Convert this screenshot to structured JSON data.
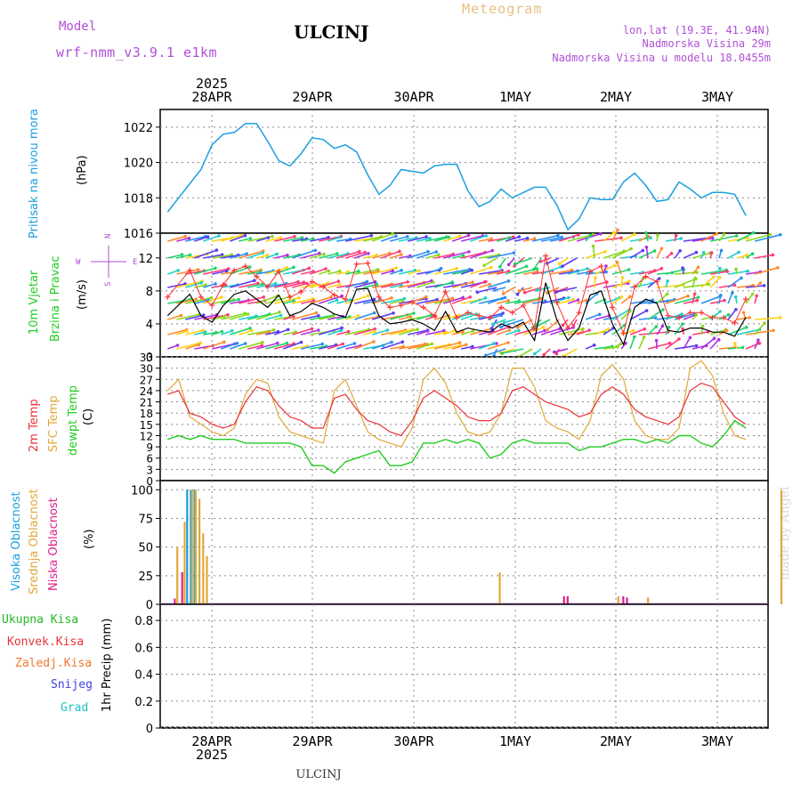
{
  "header": {
    "model_label": "Model",
    "model_name": "wrf-nmm_v3.9.1  e1km",
    "station": "ULCINJ",
    "product": "Meteogram",
    "lonlat": "lon,lat (19.3E, 41.94N)",
    "altitude": "Nadmorska Visina 29m",
    "model_altitude": "Nadmorska Visina u modelu 18.0455m",
    "footer_station": "ULCINJ",
    "credit": "made by Angel",
    "year": "2025"
  },
  "colors": {
    "pressure": "#1a9fe0",
    "temp2m": "#e8333a",
    "sfc": "#e0a93a",
    "dewpt": "#22cc22",
    "wind_speed": "#000000",
    "gust_marker": "#ff3030",
    "high_cloud": "#1a9fe0",
    "mid_cloud": "#e0a93a",
    "low_cloud": "#e0208a",
    "total_precip": "#22bb22",
    "conv_precip": "#e8333a",
    "frozen_precip": "#f07830",
    "snow": "#4040e0",
    "hail": "#20c0c0",
    "title_gold": "#e8c080",
    "header_purple": "#a040d0"
  },
  "time_axis": {
    "days": [
      "28APR",
      "29APR",
      "30APR",
      "1MAY",
      "2MAY",
      "3MAY"
    ],
    "hours_start": 0,
    "hours_end": 144
  },
  "panels": {
    "pressure": {
      "label": "Pritisak na nivou mora",
      "unit": "(hPa)",
      "ticks": [
        "1016",
        "1018",
        "1020",
        "1022"
      ]
    },
    "wind": {
      "label1": "10m Vjetar",
      "label2": "Brzina i Pravac",
      "unit": "(m/s)",
      "ticks": [
        "0",
        "4",
        "8",
        "12"
      ],
      "compass": {
        "n": "N",
        "s": "S",
        "e": "E",
        "w": "W"
      }
    },
    "temp": {
      "label1": "2m Temp",
      "label2": "SFC Temp",
      "label3": "dewpt Temp",
      "unit": "(C)",
      "ticks": [
        "0",
        "3",
        "6",
        "9",
        "12",
        "15",
        "18",
        "21",
        "24",
        "27",
        "30",
        "33"
      ]
    },
    "cloud": {
      "label1": "Visoka Oblacnost",
      "label2": "Srednja Oblacnost",
      "label3": "Niska Oblacnost",
      "unit": "(%)",
      "ticks": [
        "0",
        "25",
        "50",
        "75",
        "100"
      ]
    },
    "precip": {
      "legend": [
        "Ukupna Kisa",
        "Konvek.Kisa",
        "Zaledj.Kisa",
        "Snijeg",
        "Grad"
      ],
      "unit": "1hr Precip (mm)",
      "ticks": [
        "0",
        "0.2",
        "0.4",
        "0.6",
        "0.8"
      ]
    }
  },
  "chart_data": [
    {
      "type": "line",
      "title": "Pritisak na nivou mora",
      "ylabel": "(hPa)",
      "ylim": [
        1016,
        1023
      ],
      "x_unit": "hours from 28APR 00",
      "series": [
        {
          "name": "Pritisak na nivou mora",
          "x": [
            -12,
            -6,
            -3,
            0,
            3,
            6,
            9,
            12,
            15,
            18,
            21,
            24,
            27,
            30,
            33,
            36,
            39,
            42,
            45,
            48,
            51,
            54,
            57,
            60,
            63,
            66,
            69,
            72,
            75,
            78,
            81,
            84,
            87,
            90,
            93,
            96,
            99,
            102,
            105,
            108,
            111,
            114,
            117,
            120,
            123,
            126,
            129,
            132,
            135,
            138,
            141,
            144
          ],
          "values": [
            1017.2,
            1018.8,
            1019.6,
            1021.0,
            1021.6,
            1021.7,
            1022.2,
            1022.2,
            1021.2,
            1020.1,
            1019.8,
            1020.5,
            1021.4,
            1021.3,
            1020.8,
            1021.0,
            1020.6,
            1019.3,
            1018.2,
            1018.7,
            1019.6,
            1019.5,
            1019.4,
            1019.8,
            1019.9,
            1019.9,
            1018.4,
            1017.5,
            1017.8,
            1018.5,
            1018.0,
            1018.3,
            1018.6,
            1018.6,
            1017.6,
            1016.2,
            1016.8,
            1018.0,
            1017.9,
            1017.9,
            1018.9,
            1019.4,
            1018.7,
            1017.8,
            1017.9,
            1018.9,
            1018.5,
            1018.0,
            1018.3,
            1018.3,
            1018.2,
            1017.0
          ]
        }
      ]
    },
    {
      "type": "line",
      "title": "10m Vjetar Brzina i Pravac",
      "ylabel": "(m/s)",
      "ylim": [
        0,
        15
      ],
      "x_unit": "hours from 28APR 00",
      "series": [
        {
          "name": "Brzina",
          "x": [
            -12,
            -6,
            -3,
            0,
            3,
            6,
            9,
            12,
            15,
            18,
            21,
            24,
            27,
            30,
            33,
            36,
            39,
            42,
            45,
            48,
            51,
            54,
            57,
            60,
            63,
            66,
            69,
            72,
            75,
            78,
            81,
            84,
            87,
            90,
            93,
            96,
            99,
            102,
            105,
            108,
            111,
            114,
            117,
            120,
            123,
            126,
            129,
            132,
            135,
            138,
            141,
            144
          ],
          "values": [
            5.0,
            7.6,
            5.0,
            4.2,
            6.2,
            7.6,
            8.0,
            7.0,
            6.0,
            7.5,
            5.0,
            5.5,
            6.5,
            6.0,
            5.2,
            4.8,
            8.2,
            8.3,
            5.0,
            4.0,
            4.2,
            4.5,
            4.0,
            3.2,
            5.5,
            3.0,
            3.5,
            3.2,
            3.0,
            4.0,
            3.5,
            4.2,
            2.0,
            9.0,
            4.5,
            2.0,
            3.5,
            7.5,
            8.0,
            4.0,
            1.5,
            6.0,
            7.0,
            6.5,
            3.2,
            3.0,
            3.5,
            3.5,
            3.0,
            3.0,
            2.5,
            4.8
          ]
        }
      ]
    },
    {
      "type": "line",
      "title": "2m Temp / SFC Temp / dewpt Temp",
      "ylabel": "(C)",
      "ylim": [
        0,
        33
      ],
      "x_unit": "hours from 28APR 00",
      "series": [
        {
          "name": "2m Temp",
          "x": [
            -12,
            -9,
            -6,
            -3,
            0,
            3,
            6,
            9,
            12,
            15,
            18,
            21,
            24,
            27,
            30,
            33,
            36,
            39,
            42,
            45,
            48,
            51,
            54,
            57,
            60,
            63,
            66,
            69,
            72,
            75,
            78,
            81,
            84,
            87,
            90,
            93,
            96,
            99,
            102,
            105,
            108,
            111,
            114,
            117,
            120,
            123,
            126,
            129,
            132,
            135,
            138,
            141,
            144
          ],
          "values": [
            23,
            24,
            18,
            17,
            15,
            14,
            15,
            21,
            25,
            24,
            20,
            17,
            16,
            14,
            14,
            22,
            23,
            19,
            16,
            15,
            13,
            12,
            16,
            22,
            24,
            22,
            20,
            17,
            16,
            16,
            18,
            24,
            25,
            23,
            21,
            20,
            19,
            17,
            18,
            23,
            25,
            23,
            19,
            17,
            16,
            15,
            17,
            24,
            26,
            25,
            21,
            17,
            15
          ]
        },
        {
          "name": "SFC Temp",
          "x": [
            -12,
            -9,
            -6,
            -3,
            0,
            3,
            6,
            9,
            12,
            15,
            18,
            21,
            24,
            27,
            30,
            33,
            36,
            39,
            42,
            45,
            48,
            51,
            54,
            57,
            60,
            63,
            66,
            69,
            72,
            75,
            78,
            81,
            84,
            87,
            90,
            93,
            96,
            99,
            102,
            105,
            108,
            111,
            114,
            117,
            120,
            123,
            126,
            129,
            132,
            135,
            138,
            141,
            144
          ],
          "values": [
            24,
            27,
            17,
            15,
            13,
            12,
            14,
            23,
            27,
            26,
            17,
            13,
            12,
            11,
            10,
            24,
            27,
            20,
            13,
            11,
            10,
            9,
            14,
            27,
            30,
            26,
            18,
            13,
            12,
            13,
            18,
            30,
            30,
            25,
            16,
            14,
            13,
            11,
            16,
            28,
            31,
            27,
            16,
            12,
            11,
            11,
            14,
            30,
            32,
            28,
            18,
            12,
            11
          ]
        },
        {
          "name": "dewpt Temp",
          "x": [
            -12,
            -9,
            -6,
            -3,
            0,
            3,
            6,
            9,
            12,
            15,
            18,
            21,
            24,
            27,
            30,
            33,
            36,
            39,
            42,
            45,
            48,
            51,
            54,
            57,
            60,
            63,
            66,
            69,
            72,
            75,
            78,
            81,
            84,
            87,
            90,
            93,
            96,
            99,
            102,
            105,
            108,
            111,
            114,
            117,
            120,
            123,
            126,
            129,
            132,
            135,
            138,
            141,
            144
          ],
          "values": [
            11,
            12,
            11,
            12,
            11,
            11,
            11,
            10,
            10,
            10,
            10,
            10,
            9,
            4,
            4,
            2,
            5,
            6,
            7,
            8,
            4,
            4,
            5,
            10,
            10,
            11,
            10,
            11,
            10,
            6,
            7,
            10,
            11,
            10,
            10,
            10,
            10,
            8,
            9,
            9,
            10,
            11,
            11,
            10,
            11,
            10,
            12,
            12,
            10,
            9,
            12,
            16,
            14
          ]
        }
      ]
    },
    {
      "type": "bar",
      "title": "Oblacnost",
      "ylabel": "(%)",
      "ylim": [
        0,
        100
      ],
      "x_unit": "hours from 28APR 00",
      "series": [
        {
          "name": "Visoka Oblacnost",
          "x": [
            -7,
            -6,
            -5
          ],
          "values": [
            100,
            100,
            100
          ]
        },
        {
          "name": "Srednja Oblacnost",
          "x": [
            -10,
            -8,
            -6,
            -5,
            -4,
            -3,
            -2,
            77,
            109,
            117,
            153
          ],
          "values": [
            50,
            72,
            100,
            100,
            92,
            62,
            42,
            28,
            7,
            6,
            100
          ]
        },
        {
          "name": "Niska Oblacnost",
          "x": [
            -11,
            -9,
            94,
            95,
            110,
            111
          ],
          "values": [
            5,
            28,
            7,
            7,
            7,
            6
          ]
        }
      ]
    },
    {
      "type": "bar",
      "title": "1hr Precip",
      "ylabel": "1hr Precip (mm)",
      "ylim": [
        0,
        0.9
      ],
      "series": [
        {
          "name": "Ukupna Kisa",
          "values": []
        }
      ]
    }
  ]
}
